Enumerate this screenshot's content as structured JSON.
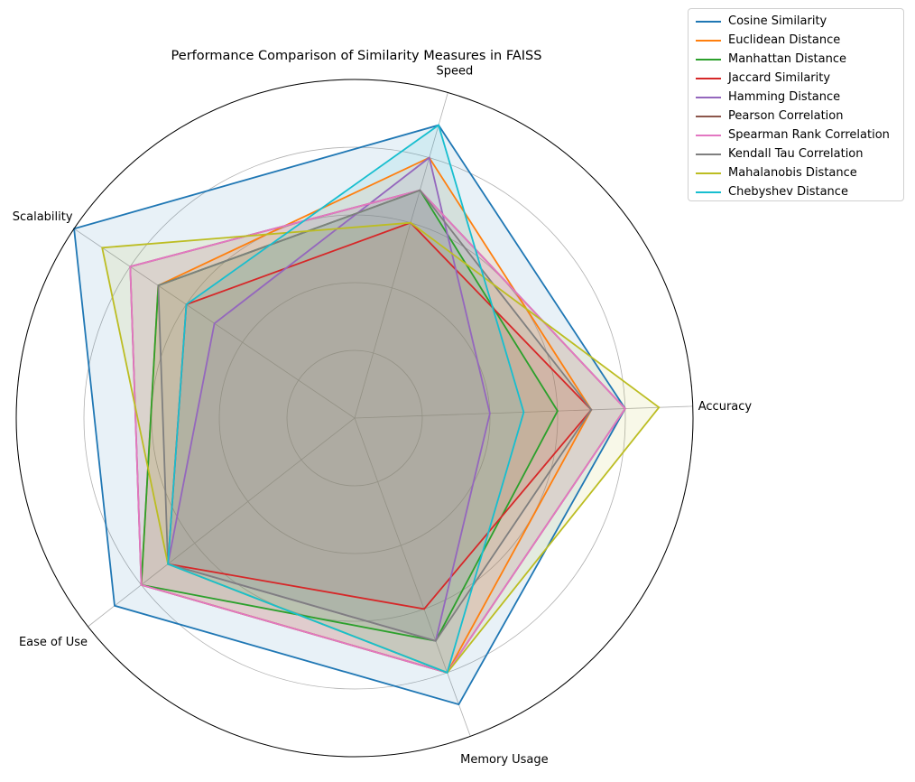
{
  "chart_data": {
    "type": "radar",
    "title": "Performance Comparison of Similarity Measures in FAISS",
    "axes": [
      "Accuracy",
      "Speed",
      "Scalability",
      "Ease of Use",
      "Memory Usage"
    ],
    "rmax": 10,
    "grid": true,
    "legend_position": "upper right, outside plot",
    "series": [
      {
        "name": "Cosine Similarity",
        "color": "#1f77b4",
        "values": [
          8,
          9,
          10,
          9,
          9
        ]
      },
      {
        "name": "Euclidean Distance",
        "color": "#ff7f0e",
        "values": [
          7,
          8,
          7,
          8,
          8
        ]
      },
      {
        "name": "Manhattan Distance",
        "color": "#2ca02c",
        "values": [
          6,
          7,
          7,
          8,
          7
        ]
      },
      {
        "name": "Jaccard Similarity",
        "color": "#d62728",
        "values": [
          7,
          6,
          6,
          7,
          6
        ]
      },
      {
        "name": "Hamming Distance",
        "color": "#9467bd",
        "values": [
          4,
          8,
          5,
          7,
          7
        ]
      },
      {
        "name": "Pearson Correlation",
        "color": "#8c564b",
        "values": [
          8,
          7,
          8,
          8,
          8
        ]
      },
      {
        "name": "Spearman Rank Correlation",
        "color": "#e377c2",
        "values": [
          8,
          7,
          8,
          8,
          8
        ]
      },
      {
        "name": "Kendall Tau Correlation",
        "color": "#7f7f7f",
        "values": [
          7,
          7,
          7,
          7,
          7
        ]
      },
      {
        "name": "Mahalanobis Distance",
        "color": "#bcbd22",
        "values": [
          9,
          6,
          9,
          7,
          8
        ]
      },
      {
        "name": "Chebyshev Distance",
        "color": "#17becf",
        "values": [
          5,
          9,
          6,
          7,
          8
        ]
      }
    ]
  }
}
